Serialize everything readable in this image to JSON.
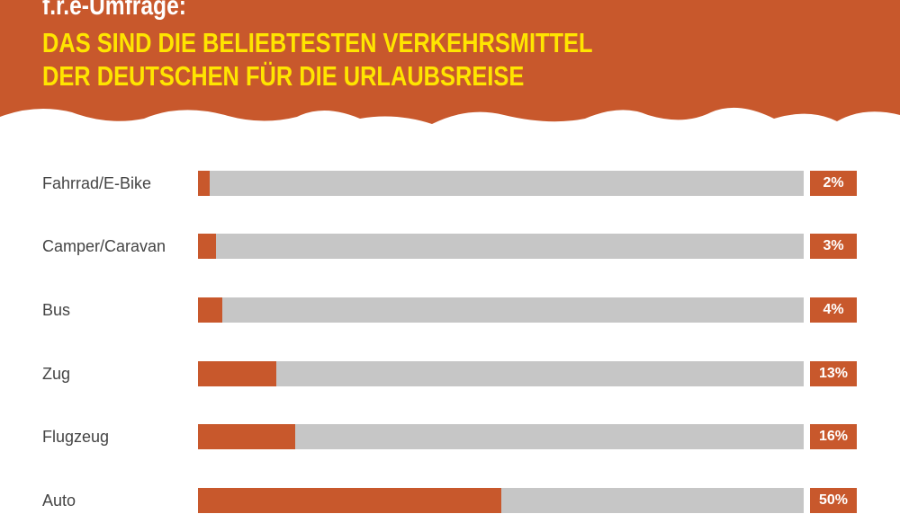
{
  "colors": {
    "header": "#c8582c",
    "title": "#ffe500",
    "bar": "#c8582c",
    "track": "#c6c6c6"
  },
  "header": {
    "kicker": "f.r.e-Umfrage:",
    "title_line1": "DAS SIND DIE BELIEBTESTEN VERKEHRSMITTEL",
    "title_line2": "DER DEUTSCHEN FÜR DIE URLAUBSREISE"
  },
  "chart_data": {
    "type": "bar",
    "orientation": "horizontal",
    "categories": [
      "Fahrrad/E-Bike",
      "Camper/Caravan",
      "Bus",
      "Zug",
      "Flugzeug",
      "Auto"
    ],
    "values": [
      2,
      3,
      4,
      13,
      16,
      50
    ],
    "labels": [
      "2%",
      "3%",
      "4%",
      "13%",
      "16%",
      "50%"
    ],
    "unit": "%",
    "xlim": [
      0,
      100
    ],
    "grid": false
  }
}
